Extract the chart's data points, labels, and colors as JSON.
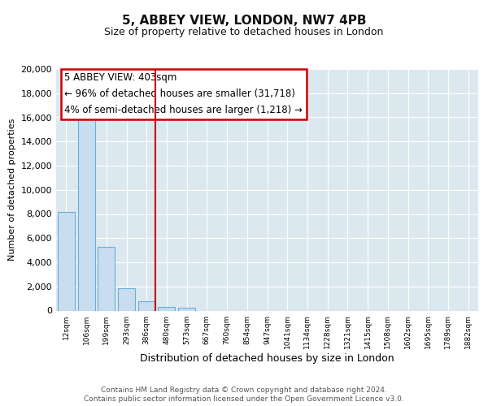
{
  "title": "5, ABBEY VIEW, LONDON, NW7 4PB",
  "subtitle": "Size of property relative to detached houses in London",
  "xlabel": "Distribution of detached houses by size in London",
  "ylabel": "Number of detached properties",
  "categories": [
    "12sqm",
    "106sqm",
    "199sqm",
    "293sqm",
    "386sqm",
    "480sqm",
    "573sqm",
    "667sqm",
    "760sqm",
    "854sqm",
    "947sqm",
    "1041sqm",
    "1134sqm",
    "1228sqm",
    "1321sqm",
    "1415sqm",
    "1508sqm",
    "1602sqm",
    "1695sqm",
    "1789sqm",
    "1882sqm"
  ],
  "values": [
    8200,
    16600,
    5300,
    1850,
    800,
    310,
    250,
    0,
    0,
    0,
    0,
    0,
    0,
    0,
    0,
    0,
    0,
    0,
    0,
    0,
    0
  ],
  "bar_color": "#c8ddef",
  "bar_edge_color": "#6aafd6",
  "vline_color": "#cc0000",
  "vline_pos": 4.45,
  "annotation_title": "5 ABBEY VIEW: 403sqm",
  "annotation_line1": "← 96% of detached houses are smaller (31,718)",
  "annotation_line2": "4% of semi-detached houses are larger (1,218) →",
  "annotation_box_facecolor": "#ffffff",
  "annotation_box_edgecolor": "#cc0000",
  "ylim": [
    0,
    20000
  ],
  "yticks": [
    0,
    2000,
    4000,
    6000,
    8000,
    10000,
    12000,
    14000,
    16000,
    18000,
    20000
  ],
  "fig_background": "#ffffff",
  "plot_background": "#dce8f0",
  "grid_color": "#ffffff",
  "footer1": "Contains HM Land Registry data © Crown copyright and database right 2024.",
  "footer2": "Contains public sector information licensed under the Open Government Licence v3.0."
}
